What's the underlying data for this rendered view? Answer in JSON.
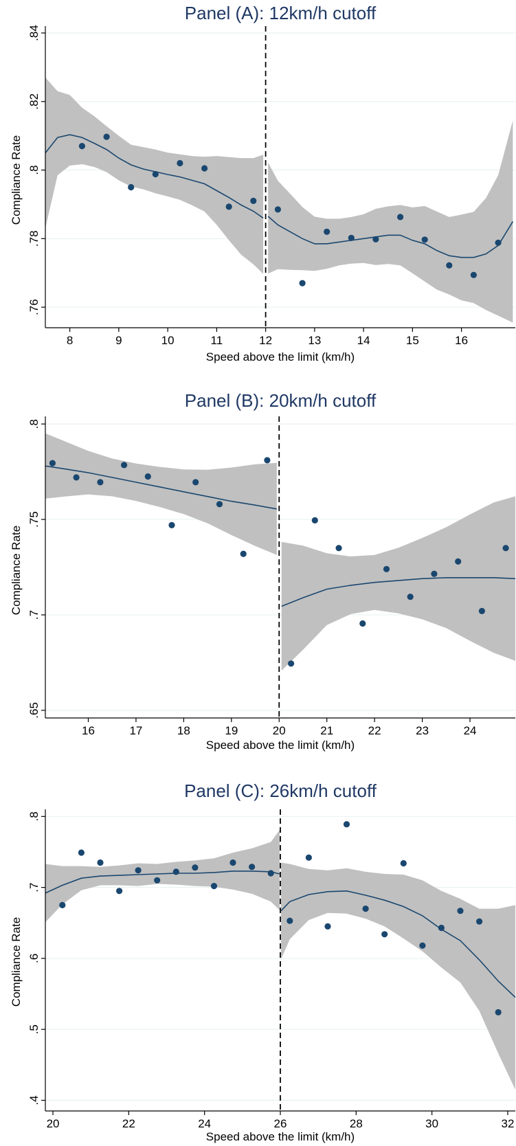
{
  "chart_data": [
    {
      "type": "scatter",
      "title": "Panel (A): 12km/h cutoff",
      "xlabel": "Speed above the limit (km/h)",
      "ylabel": "Compliance Rate",
      "xlim": [
        7.5,
        17.1
      ],
      "ylim": [
        0.754,
        0.842
      ],
      "xticks": [
        8,
        9,
        10,
        11,
        12,
        13,
        14,
        15,
        16
      ],
      "xtick_labels": [
        "8",
        "9",
        "10",
        "11",
        "12",
        "13",
        "14",
        "15",
        "16"
      ],
      "yticks": [
        0.76,
        0.78,
        0.8,
        0.82,
        0.84
      ],
      "ytick_labels": [
        ".76",
        ".78",
        ".8",
        ".82",
        ".84"
      ],
      "cutoff": 12,
      "points": {
        "x": [
          8.25,
          8.75,
          9.25,
          9.75,
          10.25,
          10.75,
          11.25,
          11.75,
          12.25,
          12.75,
          13.25,
          13.75,
          14.25,
          14.75,
          15.25,
          15.75,
          16.25,
          16.75
        ],
        "y": [
          0.807,
          0.8097,
          0.795,
          0.7988,
          0.802,
          0.8005,
          0.7893,
          0.791,
          0.7885,
          0.767,
          0.782,
          0.7802,
          0.7798,
          0.7863,
          0.7797,
          0.7722,
          0.7694,
          0.7788
        ]
      },
      "fit_left": {
        "x": [
          7.5,
          7.75,
          8.0,
          8.25,
          8.5,
          8.75,
          9.0,
          9.25,
          9.5,
          9.75,
          10.0,
          10.25,
          10.5,
          10.75,
          11.0,
          11.25,
          11.5,
          11.75,
          11.95
        ],
        "y": [
          0.805,
          0.8095,
          0.8103,
          0.8095,
          0.8078,
          0.806,
          0.8035,
          0.8015,
          0.8003,
          0.7995,
          0.7987,
          0.798,
          0.797,
          0.796,
          0.794,
          0.792,
          0.7898,
          0.788,
          0.786
        ],
        "lower": [
          0.783,
          0.7985,
          0.8013,
          0.8017,
          0.8009,
          0.7994,
          0.797,
          0.7952,
          0.7944,
          0.7932,
          0.7923,
          0.7913,
          0.7897,
          0.7879,
          0.784,
          0.7795,
          0.7753,
          0.7725,
          0.7697
        ],
        "upper": [
          0.827,
          0.823,
          0.8219,
          0.8182,
          0.8157,
          0.8128,
          0.81,
          0.8074,
          0.8067,
          0.806,
          0.8051,
          0.8046,
          0.8041,
          0.8039,
          0.8041,
          0.8038,
          0.8035,
          0.8035,
          0.8045
        ]
      },
      "fit_right": {
        "x": [
          12.05,
          12.25,
          12.5,
          12.75,
          13.0,
          13.25,
          13.5,
          13.75,
          14.0,
          14.25,
          14.5,
          14.75,
          15.0,
          15.25,
          15.5,
          15.75,
          16.0,
          16.25,
          16.5,
          16.75,
          17.05
        ],
        "y": [
          0.7865,
          0.784,
          0.782,
          0.78,
          0.7785,
          0.7785,
          0.779,
          0.7795,
          0.78,
          0.7805,
          0.781,
          0.781,
          0.7795,
          0.7785,
          0.7765,
          0.775,
          0.7745,
          0.7745,
          0.7755,
          0.778,
          0.785
        ],
        "lower": [
          0.7698,
          0.7711,
          0.7709,
          0.7708,
          0.7706,
          0.7712,
          0.7722,
          0.7727,
          0.7729,
          0.7723,
          0.7726,
          0.7722,
          0.7699,
          0.7675,
          0.7651,
          0.7637,
          0.762,
          0.7612,
          0.7592,
          0.7575,
          0.7555
        ],
        "upper": [
          0.8022,
          0.7969,
          0.7931,
          0.7892,
          0.7864,
          0.7858,
          0.7858,
          0.7863,
          0.7871,
          0.7887,
          0.7894,
          0.7898,
          0.7891,
          0.7895,
          0.7879,
          0.7863,
          0.787,
          0.7878,
          0.7918,
          0.7985,
          0.8145
        ]
      }
    },
    {
      "type": "scatter",
      "title": "Panel (B): 20km/h cutoff",
      "xlabel": "Speed above the limit (km/h)",
      "ylabel": "Compliance Rate",
      "xlim": [
        15.1,
        24.95
      ],
      "ylim": [
        0.646,
        0.804
      ],
      "xticks": [
        16,
        17,
        18,
        19,
        20,
        21,
        22,
        23,
        24
      ],
      "xtick_labels": [
        "16",
        "17",
        "18",
        "19",
        "20",
        "21",
        "22",
        "23",
        "24"
      ],
      "yticks": [
        0.65,
        0.7,
        0.75,
        0.8
      ],
      "ytick_labels": [
        ".65",
        ".7",
        ".75",
        ".8"
      ],
      "cutoff": 20,
      "points": {
        "x": [
          15.25,
          15.75,
          16.25,
          16.75,
          17.25,
          17.75,
          18.25,
          18.75,
          19.25,
          19.75,
          20.25,
          20.75,
          21.25,
          21.75,
          22.25,
          22.75,
          23.25,
          23.75,
          24.25,
          24.75
        ],
        "y": [
          0.7795,
          0.772,
          0.7695,
          0.7785,
          0.7725,
          0.747,
          0.7695,
          0.758,
          0.732,
          0.781,
          0.6745,
          0.7495,
          0.735,
          0.6955,
          0.724,
          0.7095,
          0.7215,
          0.728,
          0.702,
          0.735
        ]
      },
      "fit_left": {
        "x": [
          15.1,
          15.5,
          16.0,
          16.5,
          17.0,
          17.5,
          18.0,
          18.5,
          19.0,
          19.5,
          19.95
        ],
        "y": [
          0.778,
          0.7765,
          0.7745,
          0.772,
          0.7695,
          0.767,
          0.7645,
          0.762,
          0.7595,
          0.7575,
          0.7555
        ],
        "lower": [
          0.7609,
          0.762,
          0.7631,
          0.7621,
          0.7597,
          0.7565,
          0.7528,
          0.748,
          0.7418,
          0.7361,
          0.7314
        ],
        "upper": [
          0.7951,
          0.791,
          0.7859,
          0.7819,
          0.7793,
          0.7775,
          0.7762,
          0.776,
          0.7772,
          0.7789,
          0.7796
        ]
      },
      "fit_right": {
        "x": [
          20.05,
          20.5,
          21.0,
          21.5,
          22.0,
          22.5,
          23.0,
          23.5,
          24.0,
          24.5,
          24.95
        ],
        "y": [
          0.7045,
          0.709,
          0.7135,
          0.7155,
          0.717,
          0.718,
          0.719,
          0.7195,
          0.7195,
          0.7195,
          0.719
        ],
        "lower": [
          0.6708,
          0.6817,
          0.6947,
          0.7004,
          0.7026,
          0.7008,
          0.6977,
          0.6931,
          0.6864,
          0.6801,
          0.6759
        ],
        "upper": [
          0.7382,
          0.7363,
          0.7323,
          0.7306,
          0.7314,
          0.7352,
          0.7403,
          0.7459,
          0.7526,
          0.7589,
          0.7621
        ]
      }
    },
    {
      "type": "scatter",
      "title": "Panel (C): 26km/h cutoff",
      "xlabel": "Speed above the limit (km/h)",
      "ylabel": "Compliance Rate",
      "xlim": [
        19.8,
        32.2
      ],
      "ylim": [
        0.385,
        0.81
      ],
      "xticks": [
        20,
        22,
        24,
        26,
        28,
        30,
        32
      ],
      "xtick_labels": [
        "20",
        "22",
        "24",
        "26",
        "28",
        "30",
        "32"
      ],
      "yticks": [
        0.4,
        0.5,
        0.6,
        0.7,
        0.8
      ],
      "ytick_labels": [
        ".4",
        ".5",
        ".6",
        ".7",
        ".8"
      ],
      "cutoff": 26,
      "points": {
        "x": [
          20.25,
          20.75,
          21.25,
          21.75,
          22.25,
          22.75,
          23.25,
          23.75,
          24.25,
          24.75,
          25.25,
          25.75,
          26.25,
          26.75,
          27.25,
          27.75,
          28.25,
          28.75,
          29.25,
          29.75,
          30.25,
          30.75,
          31.25,
          31.75
        ],
        "y": [
          0.675,
          0.749,
          0.735,
          0.695,
          0.724,
          0.71,
          0.722,
          0.728,
          0.702,
          0.735,
          0.729,
          0.72,
          0.653,
          0.742,
          0.645,
          0.789,
          0.67,
          0.634,
          0.734,
          0.618,
          0.643,
          0.667,
          0.652,
          0.524
        ]
      },
      "fit_left": {
        "x": [
          19.8,
          20.25,
          20.75,
          21.25,
          21.75,
          22.25,
          22.75,
          23.25,
          23.75,
          24.25,
          24.75,
          25.25,
          25.75,
          25.98
        ],
        "y": [
          0.692,
          0.703,
          0.713,
          0.716,
          0.717,
          0.718,
          0.719,
          0.72,
          0.72,
          0.721,
          0.723,
          0.723,
          0.722,
          0.719
        ],
        "lower": [
          0.651,
          0.676,
          0.696,
          0.703,
          0.703,
          0.702,
          0.705,
          0.704,
          0.702,
          0.701,
          0.697,
          0.691,
          0.68,
          0.668
        ],
        "upper": [
          0.733,
          0.73,
          0.73,
          0.729,
          0.731,
          0.734,
          0.733,
          0.736,
          0.738,
          0.741,
          0.749,
          0.755,
          0.764,
          0.781
        ]
      },
      "fit_right": {
        "x": [
          26.02,
          26.25,
          26.75,
          27.25,
          27.75,
          28.25,
          28.75,
          29.25,
          29.75,
          30.25,
          30.75,
          31.25,
          31.75,
          32.2
        ],
        "y": [
          0.667,
          0.68,
          0.69,
          0.694,
          0.695,
          0.689,
          0.682,
          0.673,
          0.66,
          0.641,
          0.625,
          0.598,
          0.568,
          0.545
        ],
        "lower": [
          0.599,
          0.627,
          0.654,
          0.664,
          0.663,
          0.656,
          0.645,
          0.628,
          0.61,
          0.587,
          0.566,
          0.526,
          0.466,
          0.415
        ],
        "upper": [
          0.735,
          0.733,
          0.726,
          0.724,
          0.727,
          0.722,
          0.719,
          0.718,
          0.71,
          0.695,
          0.684,
          0.67,
          0.67,
          0.675
        ]
      }
    }
  ]
}
